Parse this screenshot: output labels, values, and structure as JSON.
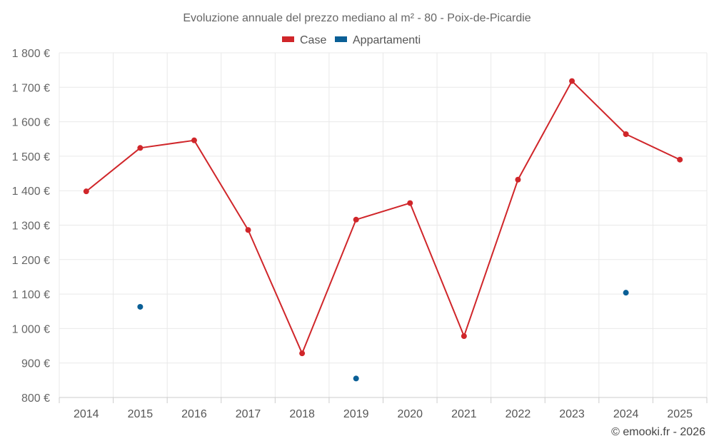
{
  "chart_data": {
    "type": "line",
    "title": "Evoluzione annuale del prezzo mediano al m² - 80 - Poix-de-Picardie",
    "categories": [
      "2014",
      "2015",
      "2016",
      "2017",
      "2018",
      "2019",
      "2020",
      "2021",
      "2022",
      "2023",
      "2024",
      "2025"
    ],
    "series": [
      {
        "name": "Case",
        "color": "#d0262a",
        "values": [
          1398,
          1524,
          1546,
          1286,
          928,
          1316,
          1364,
          978,
          1432,
          1718,
          1564,
          1490
        ]
      },
      {
        "name": "Appartamenti",
        "color": "#0a5f96",
        "values": [
          null,
          1063,
          null,
          null,
          null,
          855,
          null,
          null,
          null,
          null,
          1104,
          null
        ]
      }
    ],
    "ylim": [
      800,
      1800
    ],
    "yticks": [
      800,
      900,
      1000,
      1100,
      1200,
      1300,
      1400,
      1500,
      1600,
      1700,
      1800
    ],
    "ytick_labels": [
      "800 €",
      "900 €",
      "1 000 €",
      "1 100 €",
      "1 200 €",
      "1 300 €",
      "1 400 €",
      "1 500 €",
      "1 600 €",
      "1 700 €",
      "1 800 €"
    ],
    "xlabel": "",
    "ylabel": "",
    "legend": "top-center",
    "grid": true
  },
  "credit": "© emooki.fr - 2026"
}
